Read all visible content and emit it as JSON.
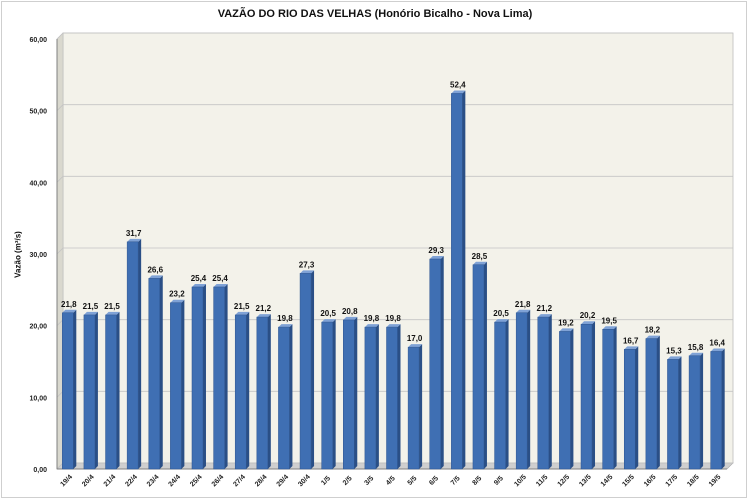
{
  "chart_data": {
    "type": "bar",
    "title": "VAZÃO DO RIO DAS VELHAS (Honório Bicalho - Nova Lima)",
    "xlabel": "",
    "ylabel": "Vazão (m³/s)",
    "ylim": [
      0,
      60
    ],
    "yticks": [
      "0,00",
      "10,00",
      "20,00",
      "30,00",
      "40,00",
      "50,00",
      "60,00"
    ],
    "grid": true,
    "bar_color": "#3f6fb3",
    "categories": [
      "19/4",
      "20/4",
      "21/4",
      "22/4",
      "23/4",
      "24/4",
      "25/4",
      "26/4",
      "27/4",
      "28/4",
      "29/4",
      "30/4",
      "1/5",
      "2/5",
      "3/5",
      "4/5",
      "5/5",
      "6/5",
      "7/5",
      "8/5",
      "9/5",
      "10/5",
      "11/5",
      "12/5",
      "13/5",
      "14/5",
      "15/5",
      "16/5",
      "17/5",
      "18/5",
      "19/5"
    ],
    "values": [
      21.8,
      21.5,
      21.5,
      31.7,
      26.6,
      23.2,
      25.4,
      25.4,
      21.5,
      21.2,
      19.8,
      27.3,
      20.5,
      20.8,
      19.8,
      19.8,
      17.0,
      29.3,
      52.4,
      28.5,
      20.5,
      21.8,
      21.2,
      19.2,
      20.2,
      19.5,
      16.7,
      18.2,
      15.3,
      15.8,
      16.4
    ],
    "data_labels": [
      "21,8",
      "21,5",
      "21,5",
      "31,7",
      "26,6",
      "23,2",
      "25,4",
      "25,4",
      "21,5",
      "21,2",
      "19,8",
      "27,3",
      "20,5",
      "20,8",
      "19,8",
      "19,8",
      "17,0",
      "29,3",
      "52,4",
      "28,5",
      "20,5",
      "21,8",
      "21,2",
      "19,2",
      "20,2",
      "19,5",
      "16,7",
      "18,2",
      "15,3",
      "15,8",
      "16,4"
    ]
  }
}
